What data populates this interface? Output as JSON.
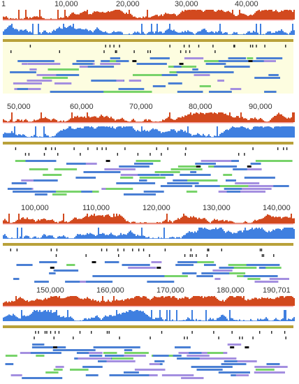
{
  "genome": {
    "length": 190701,
    "panel_span": 47675
  },
  "colors": {
    "gc_skew": "#d2491e",
    "gc_content": "#3f7fe0",
    "contig_bar": "#b9a13a",
    "feature_blue": "#4a7fd4",
    "feature_green": "#78d36a",
    "feature_purple": "#a48fe0",
    "feature_dark": "#111111",
    "panel_fill": "#fdfde0",
    "baseline_pink": "#f4a3a3"
  },
  "ruler": {
    "labels": [
      "1",
      "10,000",
      "20,000",
      "30,000",
      "40,000",
      "50,000",
      "60,000",
      "70,000",
      "80,000",
      "90,000",
      "100,000",
      "110,000",
      "120,000",
      "130,000",
      "140,000",
      "150,000",
      "160,000",
      "170,000",
      "180,000",
      "190,701"
    ],
    "values": [
      1,
      10000,
      20000,
      30000,
      40000,
      50000,
      60000,
      70000,
      80000,
      90000,
      100000,
      110000,
      120000,
      130000,
      140000,
      150000,
      160000,
      170000,
      180000,
      190701
    ]
  },
  "panels": [
    {
      "id": "panel-1",
      "start": 1,
      "end": 47675,
      "labels": [
        "1",
        "10,000",
        "20,000",
        "30,000",
        "40,000"
      ]
    },
    {
      "id": "panel-2",
      "start": 47676,
      "end": 95350,
      "labels": [
        "50,000",
        "60,000",
        "70,000",
        "80,000",
        "90,000"
      ]
    },
    {
      "id": "panel-3",
      "start": 95351,
      "end": 143025,
      "labels": [
        "100,000",
        "110,000",
        "120,000",
        "130,000",
        "140,000"
      ]
    },
    {
      "id": "panel-4",
      "start": 143026,
      "end": 190701,
      "labels": [
        "150,000",
        "160,000",
        "170,000",
        "180,000",
        "190,701"
      ]
    }
  ]
}
